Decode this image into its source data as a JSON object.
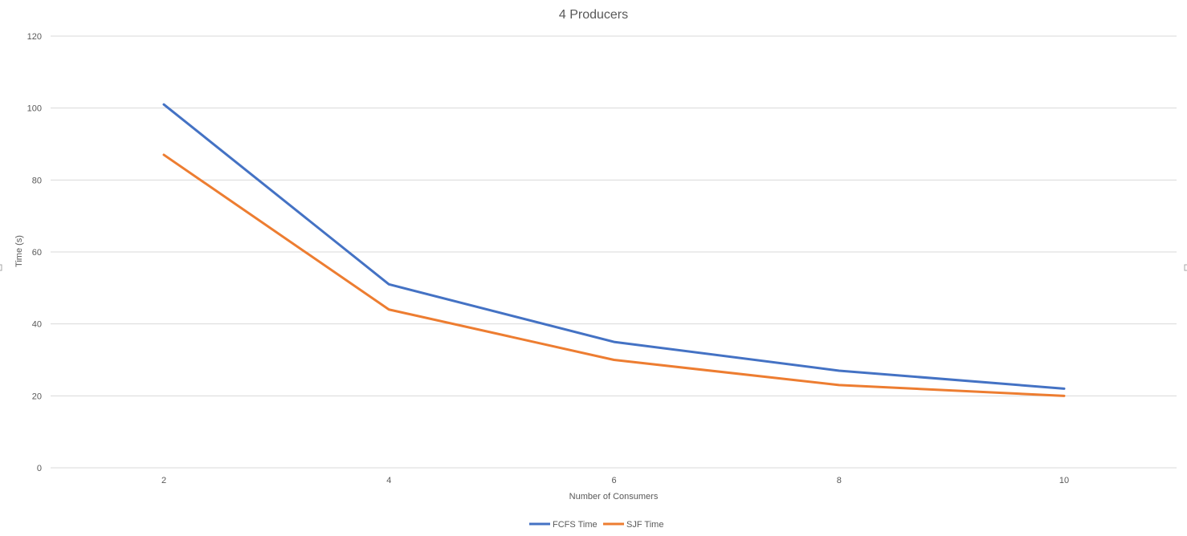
{
  "chart_data": {
    "type": "line",
    "title": "4 Producers",
    "xlabel": "Number of Consumers",
    "ylabel": "Time (s)",
    "categories": [
      "2",
      "4",
      "6",
      "8",
      "10"
    ],
    "ylim": [
      0,
      120
    ],
    "yticks": [
      0,
      20,
      40,
      60,
      80,
      100,
      120
    ],
    "grid": true,
    "legend_position": "bottom",
    "series": [
      {
        "name": "FCFS Time",
        "color": "#4472c4",
        "values": [
          101,
          51,
          35,
          27,
          22
        ]
      },
      {
        "name": "SJF Time",
        "color": "#ed7d31",
        "values": [
          87,
          44,
          30,
          23,
          20
        ]
      }
    ]
  }
}
